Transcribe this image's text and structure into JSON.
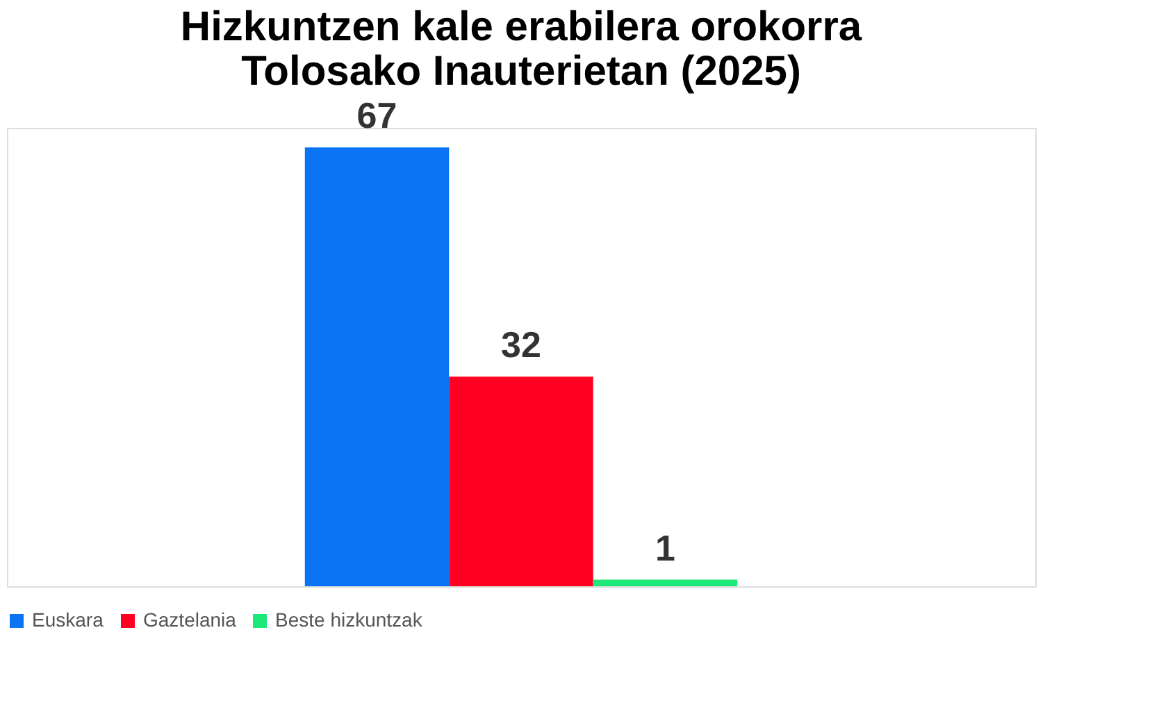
{
  "chart_data": {
    "type": "bar",
    "title": "Hizkuntzen kale erabilera orokorra\nTolosako Inauterietan (2025)",
    "categories": [
      null
    ],
    "series": [
      {
        "name": "Euskara",
        "color": "#0a74f5",
        "values": [
          67
        ]
      },
      {
        "name": "Gaztelania",
        "color": "#ff0022",
        "values": [
          32
        ]
      },
      {
        "name": "Beste hizkuntzak",
        "color": "#1ee87a",
        "values": [
          1
        ]
      }
    ],
    "data_labels": true,
    "legend": "bottom",
    "grid": false,
    "tick_labels": false
  }
}
